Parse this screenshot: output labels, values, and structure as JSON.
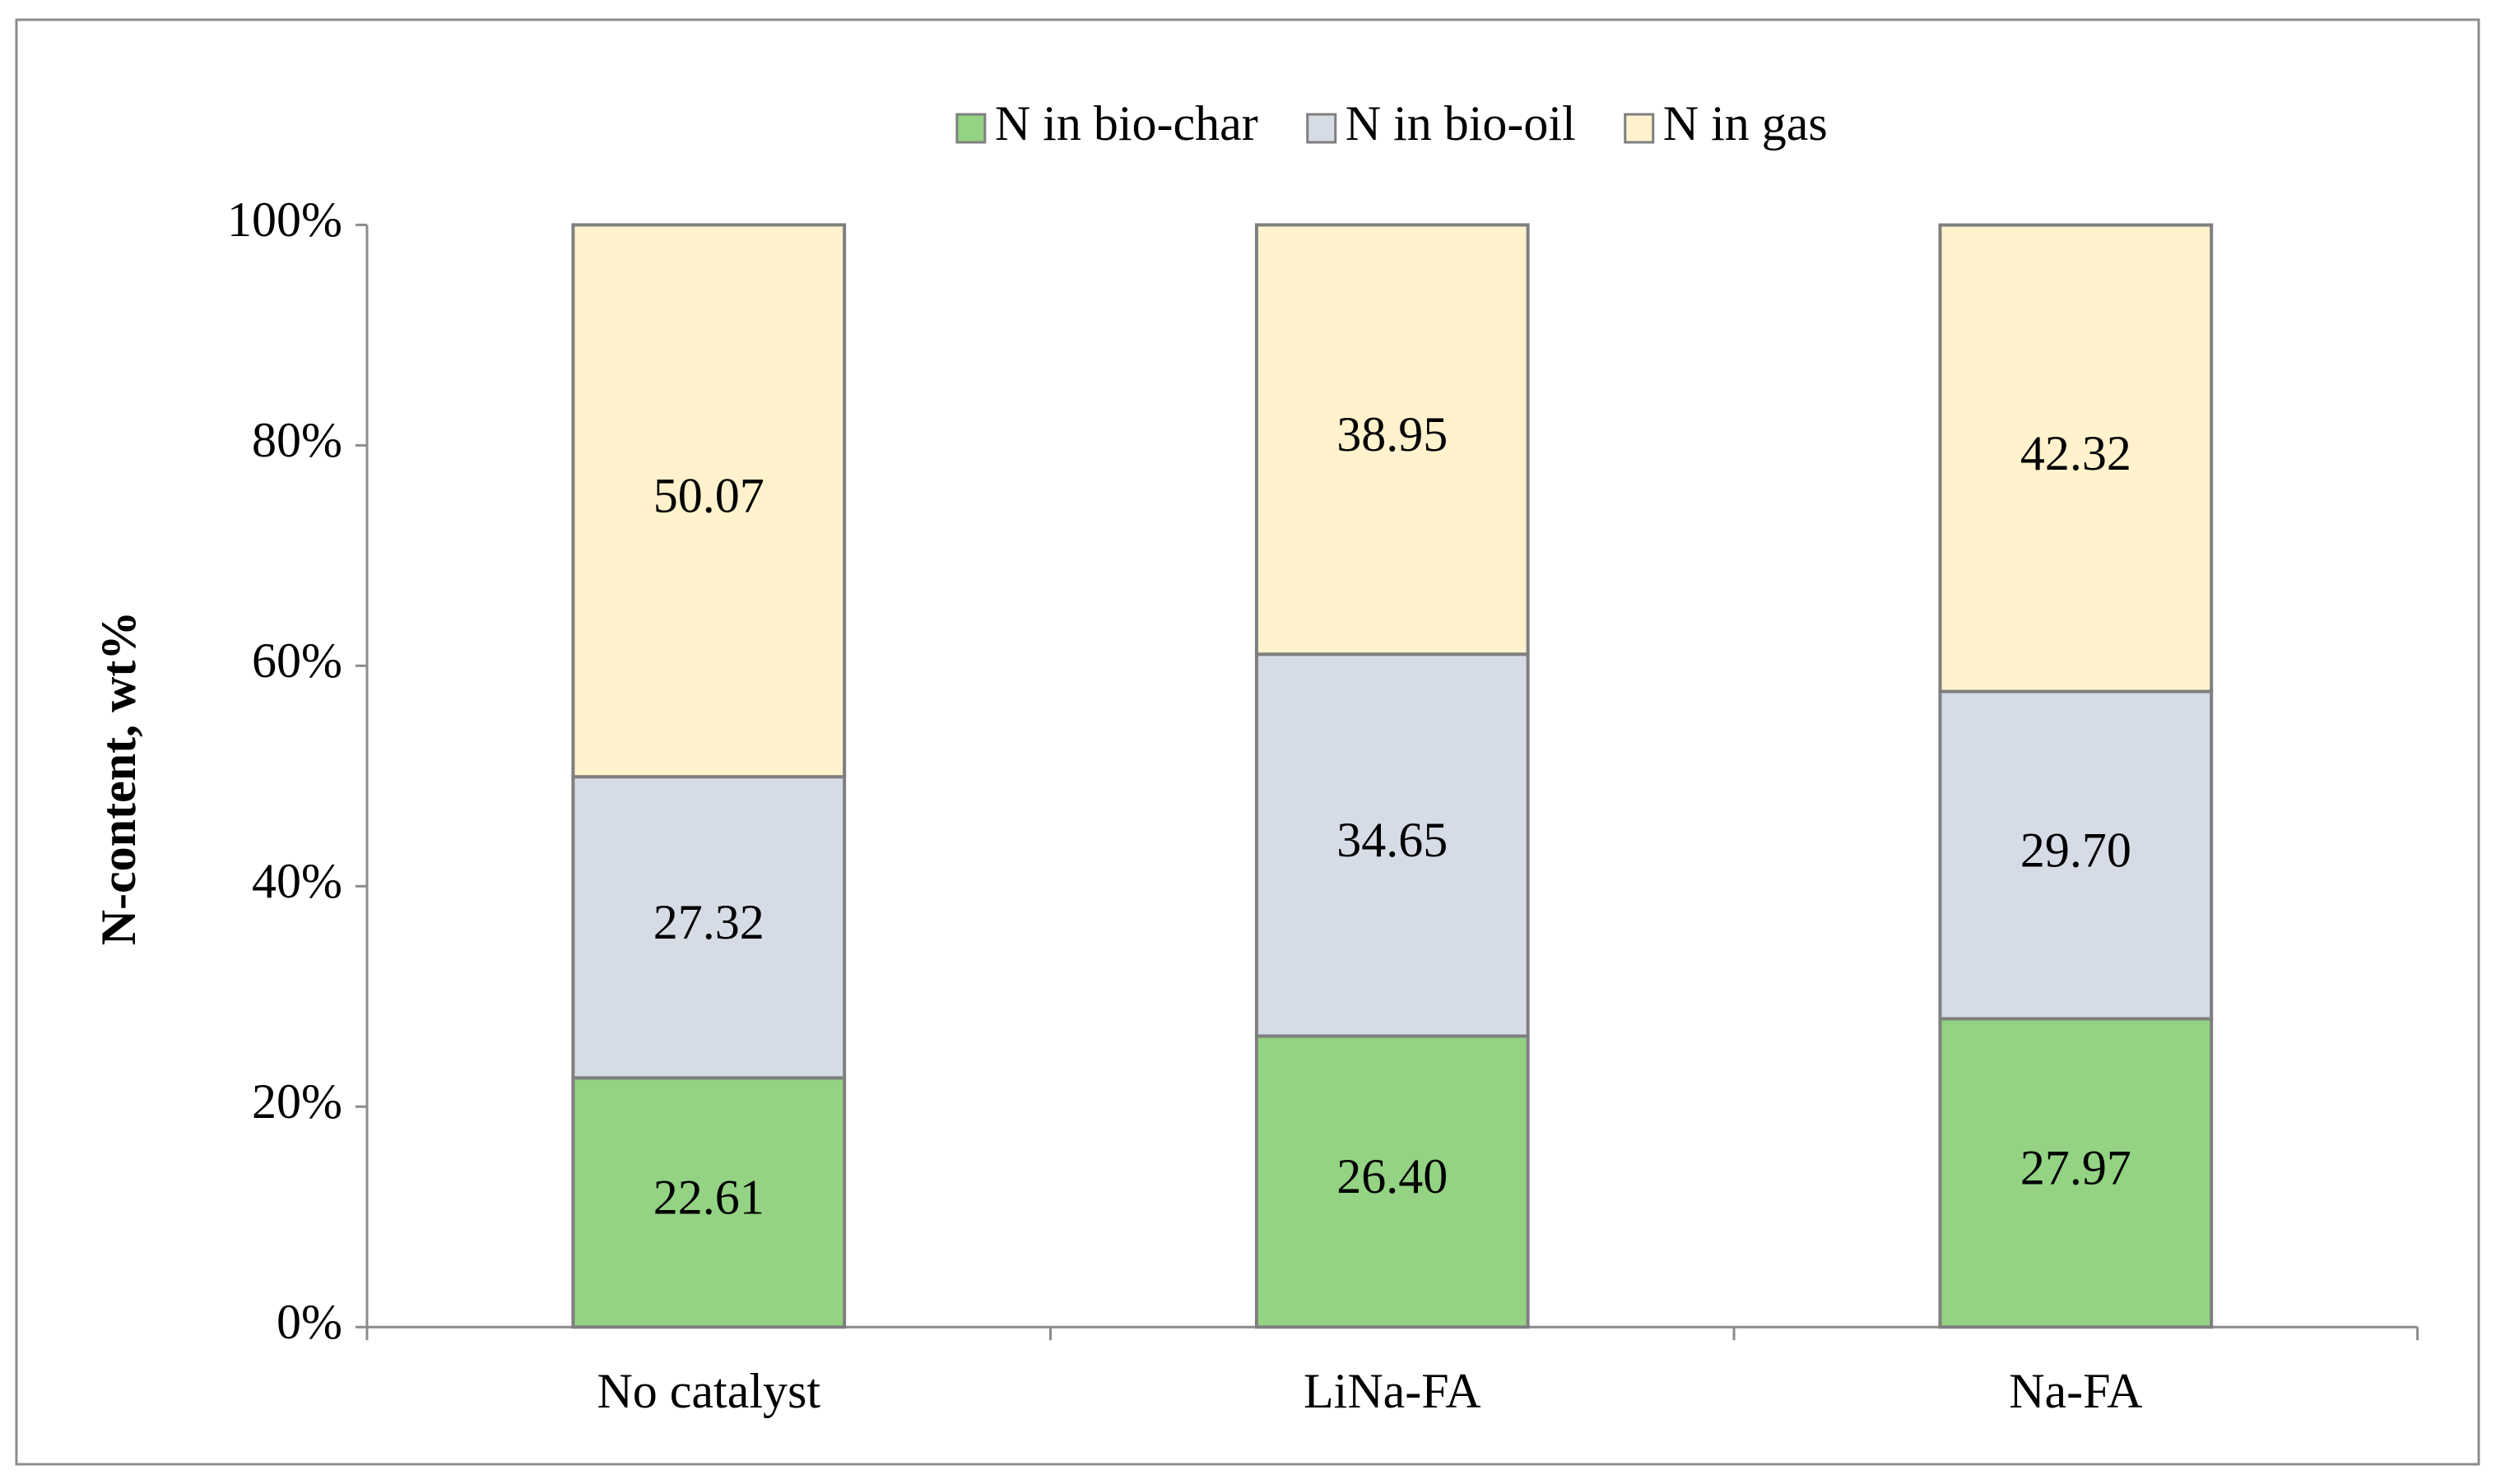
{
  "chart_data": {
    "type": "stacked_bar",
    "y_label": "N-content, wt%",
    "categories": [
      "No catalyst",
      "LiNa-FA",
      "Na-FA"
    ],
    "series": [
      {
        "name": "N in bio-char",
        "color": "#93d383",
        "values": [
          22.61,
          26.4,
          27.97
        ],
        "value_labels": [
          "22.61",
          "26.40",
          "27.97"
        ]
      },
      {
        "name": "N in bio-oil",
        "color": "#d6dce5",
        "values": [
          27.32,
          34.65,
          29.7
        ],
        "value_labels": [
          "27.32",
          "34.65",
          "29.70"
        ]
      },
      {
        "name": "N in gas",
        "color": "#fff2cc",
        "values": [
          50.07,
          38.95,
          42.32
        ],
        "value_labels": [
          "50.07",
          "38.95",
          "42.32"
        ]
      }
    ],
    "ylim": [
      0,
      100
    ],
    "yticks": [
      {
        "value": 0,
        "label": "0%"
      },
      {
        "value": 20,
        "label": "20%"
      },
      {
        "value": 40,
        "label": "40%"
      },
      {
        "value": 60,
        "label": "60%"
      },
      {
        "value": 80,
        "label": "80%"
      },
      {
        "value": 100,
        "label": "100%"
      }
    ],
    "legend": "top"
  }
}
